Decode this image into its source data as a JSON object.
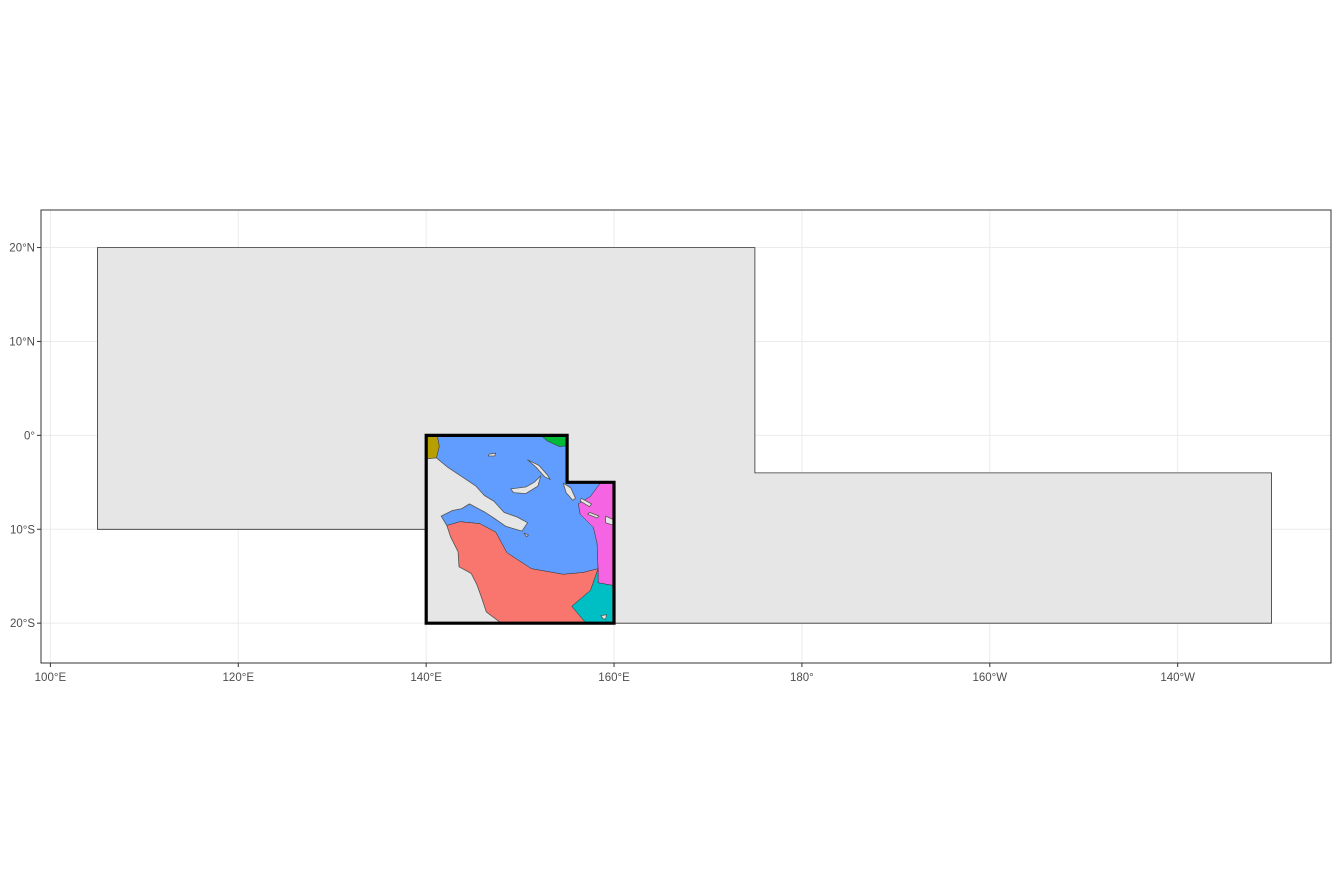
{
  "map": {
    "projection": "equirectangular (longitude, latitude in degrees; 360-degree east longitude)",
    "lon_range": [
      99,
      236
    ],
    "lat_range": [
      -24,
      24
    ],
    "grid": true,
    "panel_background": "#ffffff",
    "grid_color": "#ebebeb",
    "x_ticks": [
      {
        "lon": 100,
        "label": "100°E"
      },
      {
        "lon": 120,
        "label": "120°E"
      },
      {
        "lon": 140,
        "label": "140°E"
      },
      {
        "lon": 160,
        "label": "160°E"
      },
      {
        "lon": 180,
        "label": "180°"
      },
      {
        "lon": 200,
        "label": "160°W"
      },
      {
        "lon": 220,
        "label": "140°W"
      }
    ],
    "y_ticks": [
      {
        "lat": 20,
        "label": "20°N"
      },
      {
        "lat": 10,
        "label": "10°N"
      },
      {
        "lat": 0,
        "label": "0°"
      },
      {
        "lat": -10,
        "label": "10°S"
      },
      {
        "lat": -20,
        "label": "20°S"
      }
    ],
    "layers": {
      "outer_region": {
        "fill": "#e6e6e6",
        "stroke": "#333333",
        "coords": [
          [
            105,
            20
          ],
          [
            175,
            20
          ],
          [
            175,
            -4
          ],
          [
            230,
            -4
          ],
          [
            230,
            -20
          ],
          [
            140,
            -20
          ],
          [
            140,
            -10
          ],
          [
            105,
            -10
          ]
        ]
      },
      "highlight_region": {
        "stroke": "#000000",
        "coords": [
          [
            140,
            0
          ],
          [
            155,
            0
          ],
          [
            155,
            -5
          ],
          [
            160,
            -5
          ],
          [
            160,
            -20
          ],
          [
            140,
            -20
          ]
        ]
      },
      "zones": [
        {
          "name": "zone-olive",
          "fill": "#b79f00",
          "coords": [
            [
              140,
              0
            ],
            [
              141.2,
              0
            ],
            [
              141.4,
              -1.2
            ],
            [
              141.1,
              -2.4
            ],
            [
              140,
              -2.6
            ]
          ]
        },
        {
          "name": "zone-green",
          "fill": "#00ba38",
          "coords": [
            [
              152.2,
              0
            ],
            [
              155,
              0
            ],
            [
              155,
              -1.1
            ],
            [
              154.2,
              -1.2
            ],
            [
              152.9,
              -0.6
            ]
          ]
        },
        {
          "name": "zone-blue",
          "fill": "#619cff",
          "coords": [
            [
              141.2,
              0
            ],
            [
              152.2,
              0
            ],
            [
              152.9,
              -0.6
            ],
            [
              154.2,
              -1.2
            ],
            [
              155,
              -1.1
            ],
            [
              155,
              -5
            ],
            [
              158.6,
              -5
            ],
            [
              157.5,
              -6.5
            ],
            [
              156.2,
              -7.3
            ],
            [
              156.4,
              -8.4
            ],
            [
              157.8,
              -9.8
            ],
            [
              158.2,
              -11.5
            ],
            [
              158.3,
              -14.2
            ],
            [
              156.7,
              -14.6
            ],
            [
              154.6,
              -14.8
            ],
            [
              151.2,
              -14.2
            ],
            [
              148.6,
              -12.5
            ],
            [
              147.4,
              -10.3
            ],
            [
              145.7,
              -9.4
            ],
            [
              143.6,
              -9.2
            ],
            [
              142.2,
              -9.6
            ],
            [
              141.6,
              -8.6
            ],
            [
              142.8,
              -8.0
            ],
            [
              143.8,
              -7.8
            ],
            [
              144.6,
              -7.3
            ],
            [
              146.3,
              -8.2
            ],
            [
              147.2,
              -8.8
            ],
            [
              148.5,
              -9.7
            ],
            [
              150.2,
              -10.2
            ],
            [
              150.8,
              -9.3
            ],
            [
              149.7,
              -8.7
            ],
            [
              148.3,
              -8.2
            ],
            [
              147.2,
              -7.0
            ],
            [
              146.2,
              -6.4
            ],
            [
              145.3,
              -5.4
            ],
            [
              143.8,
              -4.4
            ],
            [
              142.3,
              -3.4
            ],
            [
              141.1,
              -2.4
            ],
            [
              141.4,
              -1.2
            ]
          ]
        },
        {
          "name": "zone-salmon",
          "fill": "#f8766d",
          "coords": [
            [
              142.2,
              -9.6
            ],
            [
              143.6,
              -9.2
            ],
            [
              145.7,
              -9.4
            ],
            [
              147.4,
              -10.3
            ],
            [
              148.6,
              -12.5
            ],
            [
              151.2,
              -14.2
            ],
            [
              154.6,
              -14.8
            ],
            [
              156.7,
              -14.6
            ],
            [
              158.3,
              -14.2
            ],
            [
              157.5,
              -16.5
            ],
            [
              155.5,
              -18.2
            ],
            [
              157.0,
              -20
            ],
            [
              148.0,
              -20
            ],
            [
              146.4,
              -18.8
            ],
            [
              145.9,
              -17.3
            ],
            [
              145.4,
              -15.9
            ],
            [
              144.8,
              -14.7
            ],
            [
              143.5,
              -14.0
            ],
            [
              143.4,
              -12.4
            ],
            [
              142.6,
              -10.8
            ]
          ]
        },
        {
          "name": "zone-magenta",
          "fill": "#f564e3",
          "coords": [
            [
              158.6,
              -5
            ],
            [
              160,
              -5
            ],
            [
              160,
              -16.0
            ],
            [
              158.3,
              -15.7
            ],
            [
              158.3,
              -14.2
            ],
            [
              158.2,
              -11.5
            ],
            [
              157.8,
              -9.8
            ],
            [
              156.4,
              -8.4
            ],
            [
              156.2,
              -7.3
            ],
            [
              157.5,
              -6.5
            ]
          ]
        },
        {
          "name": "zone-teal",
          "fill": "#00bfc4",
          "coords": [
            [
              158.3,
              -14.2
            ],
            [
              158.3,
              -15.7
            ],
            [
              160,
              -16.0
            ],
            [
              160,
              -20
            ],
            [
              157.0,
              -20
            ],
            [
              155.5,
              -18.2
            ],
            [
              157.5,
              -16.5
            ]
          ]
        }
      ],
      "land": {
        "fill": "#e6e6e6",
        "stroke": "#555555",
        "polygons": [
          [
            [
              140,
              -2.5
            ],
            [
              141.1,
              -2.4
            ],
            [
              142.3,
              -3.4
            ],
            [
              143.8,
              -4.4
            ],
            [
              145.3,
              -5.4
            ],
            [
              146.2,
              -6.4
            ],
            [
              147.2,
              -7.0
            ],
            [
              148.3,
              -8.2
            ],
            [
              149.7,
              -8.7
            ],
            [
              150.8,
              -9.3
            ],
            [
              150.2,
              -10.2
            ],
            [
              148.5,
              -9.7
            ],
            [
              147.2,
              -8.8
            ],
            [
              146.3,
              -8.2
            ],
            [
              144.6,
              -7.3
            ],
            [
              143.8,
              -7.8
            ],
            [
              142.8,
              -8.0
            ],
            [
              141.6,
              -8.6
            ],
            [
              142.2,
              -9.6
            ],
            [
              142.6,
              -10.8
            ],
            [
              143.4,
              -12.4
            ],
            [
              143.5,
              -14.0
            ],
            [
              144.8,
              -14.7
            ],
            [
              145.4,
              -15.9
            ],
            [
              145.9,
              -17.3
            ],
            [
              146.4,
              -18.8
            ],
            [
              148.0,
              -20
            ],
            [
              140,
              -20
            ]
          ],
          [
            [
              149.0,
              -5.7
            ],
            [
              150.6,
              -5.5
            ],
            [
              151.5,
              -5.0
            ],
            [
              152.2,
              -4.3
            ],
            [
              151.9,
              -5.4
            ],
            [
              150.6,
              -6.2
            ],
            [
              149.3,
              -6.1
            ]
          ],
          [
            [
              150.8,
              -2.6
            ],
            [
              152.0,
              -3.2
            ],
            [
              152.9,
              -4.2
            ],
            [
              153.2,
              -4.7
            ],
            [
              152.6,
              -4.4
            ],
            [
              151.7,
              -3.4
            ]
          ],
          [
            [
              146.7,
              -2.0
            ],
            [
              147.4,
              -1.9
            ],
            [
              147.3,
              -2.2
            ],
            [
              146.6,
              -2.2
            ]
          ],
          [
            [
              154.6,
              -5.1
            ],
            [
              155.4,
              -5.6
            ],
            [
              155.9,
              -6.7
            ],
            [
              155.6,
              -6.9
            ],
            [
              154.9,
              -6.1
            ]
          ],
          [
            [
              156.5,
              -6.7
            ],
            [
              157.6,
              -7.3
            ],
            [
              157.4,
              -7.6
            ],
            [
              156.4,
              -7.0
            ]
          ],
          [
            [
              157.4,
              -8.2
            ],
            [
              158.4,
              -8.6
            ],
            [
              158.2,
              -8.8
            ],
            [
              157.2,
              -8.4
            ]
          ],
          [
            [
              159.1,
              -8.6
            ],
            [
              160.0,
              -9.0
            ],
            [
              160.0,
              -9.6
            ],
            [
              159.1,
              -9.3
            ]
          ],
          [
            [
              160,
              -8.5
            ],
            [
              160,
              -9.2
            ]
          ],
          [
            [
              150.4,
              -10.4
            ],
            [
              150.9,
              -10.6
            ],
            [
              150.7,
              -10.8
            ]
          ],
          [
            [
              158.6,
              -19.2
            ],
            [
              159.2,
              -19.1
            ],
            [
              159.1,
              -19.6
            ],
            [
              158.8,
              -19.5
            ]
          ]
        ]
      }
    }
  }
}
